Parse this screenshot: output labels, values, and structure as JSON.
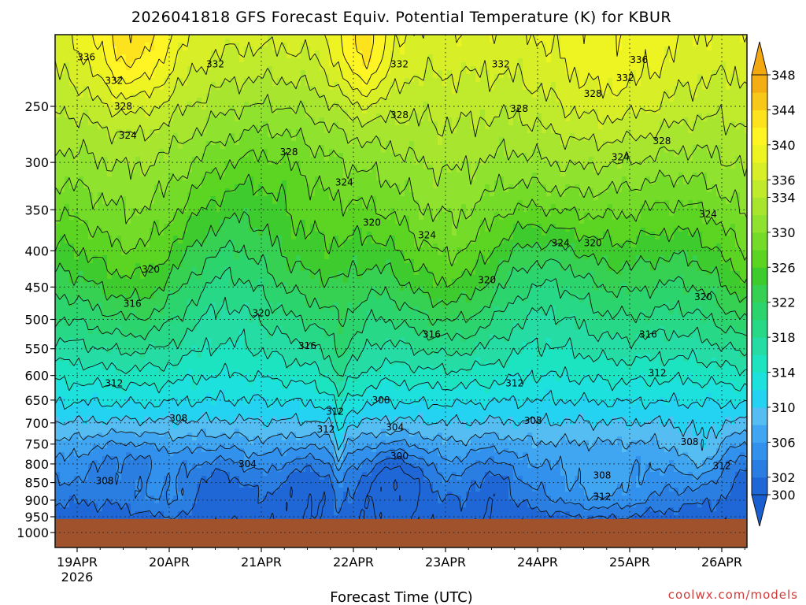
{
  "chart_data": {
    "type": "heatmap",
    "title": "2026041818 GFS Forecast Equiv. Potential Temperature (K) for KBUR",
    "xlabel": "Forecast Time (UTC)",
    "ylabel": "",
    "credit": "coolwx.com/models",
    "x_ticks": [
      "19APR",
      "20APR",
      "21APR",
      "22APR",
      "23APR",
      "24APR",
      "25APR",
      "26APR"
    ],
    "x_sub": "2026",
    "y_ticks": [
      250,
      300,
      350,
      400,
      450,
      500,
      550,
      600,
      650,
      700,
      750,
      800,
      850,
      900,
      950,
      1000
    ],
    "y_scale": "log-pressure",
    "y_range": [
      1000,
      200
    ],
    "colorbar": {
      "levels": [
        300,
        302,
        304,
        306,
        308,
        310,
        312,
        314,
        316,
        318,
        320,
        322,
        324,
        326,
        328,
        330,
        332,
        334,
        336,
        338,
        340,
        342,
        344,
        346,
        348
      ],
      "tick_labels": [
        300,
        302,
        306,
        310,
        314,
        318,
        322,
        326,
        330,
        334,
        336,
        340,
        344,
        348
      ],
      "colors": [
        "#1f66d6",
        "#2a7ee2",
        "#3391ee",
        "#41a6f2",
        "#56bdf2",
        "#24d2f2",
        "#1ce1dd",
        "#1ce3c0",
        "#25dda4",
        "#27d886",
        "#2bd46c",
        "#36d052",
        "#3ecb2d",
        "#5cd522",
        "#74dc28",
        "#8fe22e",
        "#a7e52e",
        "#c0ea2c",
        "#d8ef28",
        "#edf422",
        "#fff524",
        "#fde31e",
        "#f8c818",
        "#f4ae14"
      ],
      "extend": "both"
    },
    "contour_interval": 2,
    "contour_labels": [
      {
        "value": 336,
        "day": 0.1,
        "p": 213
      },
      {
        "value": 332,
        "day": 1.5,
        "p": 218
      },
      {
        "value": 332,
        "day": 0.4,
        "p": 230
      },
      {
        "value": 328,
        "day": 0.5,
        "p": 250
      },
      {
        "value": 324,
        "day": 0.55,
        "p": 275
      },
      {
        "value": 332,
        "day": 3.5,
        "p": 218
      },
      {
        "value": 328,
        "day": 2.3,
        "p": 290
      },
      {
        "value": 328,
        "day": 3.5,
        "p": 257
      },
      {
        "value": 332,
        "day": 4.6,
        "p": 218
      },
      {
        "value": 328,
        "day": 4.8,
        "p": 252
      },
      {
        "value": 324,
        "day": 2.9,
        "p": 320
      },
      {
        "value": 320,
        "day": 3.2,
        "p": 365
      },
      {
        "value": 324,
        "day": 3.8,
        "p": 380
      },
      {
        "value": 320,
        "day": 0.8,
        "p": 425
      },
      {
        "value": 316,
        "day": 0.6,
        "p": 475
      },
      {
        "value": 320,
        "day": 2.0,
        "p": 490
      },
      {
        "value": 316,
        "day": 2.5,
        "p": 545
      },
      {
        "value": 316,
        "day": 3.85,
        "p": 525
      },
      {
        "value": 320,
        "day": 4.45,
        "p": 440
      },
      {
        "value": 324,
        "day": 5.25,
        "p": 390
      },
      {
        "value": 320,
        "day": 5.6,
        "p": 390
      },
      {
        "value": 336,
        "day": 6.1,
        "p": 215
      },
      {
        "value": 332,
        "day": 5.95,
        "p": 228
      },
      {
        "value": 328,
        "day": 5.6,
        "p": 240
      },
      {
        "value": 324,
        "day": 5.9,
        "p": 295
      },
      {
        "value": 328,
        "day": 6.35,
        "p": 280
      },
      {
        "value": 324,
        "day": 6.85,
        "p": 355
      },
      {
        "value": 320,
        "day": 6.8,
        "p": 465
      },
      {
        "value": 316,
        "day": 6.2,
        "p": 525
      },
      {
        "value": 312,
        "day": 6.3,
        "p": 595
      },
      {
        "value": 312,
        "day": 0.4,
        "p": 615
      },
      {
        "value": 308,
        "day": 1.1,
        "p": 690
      },
      {
        "value": 304,
        "day": 1.85,
        "p": 800
      },
      {
        "value": 308,
        "day": 0.3,
        "p": 845
      },
      {
        "value": 312,
        "day": 2.8,
        "p": 675
      },
      {
        "value": 312,
        "day": 2.7,
        "p": 715
      },
      {
        "value": 308,
        "day": 3.3,
        "p": 650
      },
      {
        "value": 304,
        "day": 3.45,
        "p": 710
      },
      {
        "value": 300,
        "day": 3.5,
        "p": 780
      },
      {
        "value": 312,
        "day": 4.75,
        "p": 615
      },
      {
        "value": 308,
        "day": 4.95,
        "p": 695
      },
      {
        "value": 308,
        "day": 5.7,
        "p": 830
      },
      {
        "value": 312,
        "day": 5.7,
        "p": 890
      },
      {
        "value": 308,
        "day": 6.65,
        "p": 745
      },
      {
        "value": 312,
        "day": 7.0,
        "p": 805
      }
    ],
    "surface": {
      "p_top": 957,
      "color": "#a0522d"
    }
  }
}
